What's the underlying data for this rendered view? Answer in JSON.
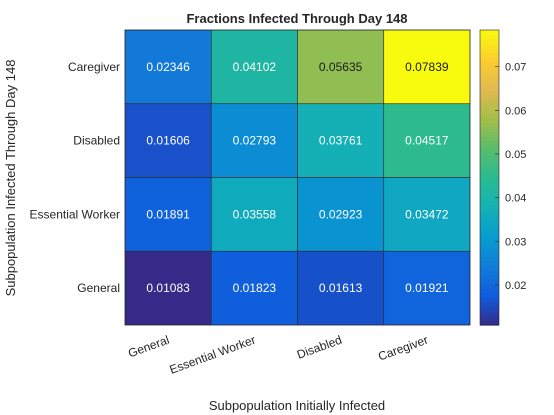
{
  "chart_data": {
    "type": "heatmap",
    "title": "Fractions Infected Through Day 148",
    "xlabel": "Subpopulation Initially Infected",
    "ylabel": "Subpopulation Infected Through Day 148",
    "x_categories": [
      "General",
      "Essential Worker",
      "Disabled",
      "Caregiver"
    ],
    "y_categories": [
      "Caregiver",
      "Disabled",
      "Essential Worker",
      "General"
    ],
    "values": [
      [
        0.02346,
        0.04102,
        0.05635,
        0.07839
      ],
      [
        0.01606,
        0.02793,
        0.03761,
        0.04517
      ],
      [
        0.01891,
        0.03558,
        0.02923,
        0.03472
      ],
      [
        0.01083,
        0.01823,
        0.01613,
        0.01921
      ]
    ],
    "value_labels": [
      [
        "0.02346",
        "0.04102",
        "0.05635",
        "0.07839"
      ],
      [
        "0.01606",
        "0.02793",
        "0.03761",
        "0.04517"
      ],
      [
        "0.01891",
        "0.03558",
        "0.02923",
        "0.03472"
      ],
      [
        "0.01083",
        "0.01823",
        "0.01613",
        "0.01921"
      ]
    ],
    "colormap": "parula",
    "colorbar": {
      "range": [
        0.01083,
        0.07839
      ],
      "ticks": [
        0.02,
        0.03,
        0.04,
        0.05,
        0.06,
        0.07
      ],
      "tick_labels": [
        "0.02",
        "0.03",
        "0.04",
        "0.05",
        "0.06",
        "0.07"
      ]
    }
  }
}
